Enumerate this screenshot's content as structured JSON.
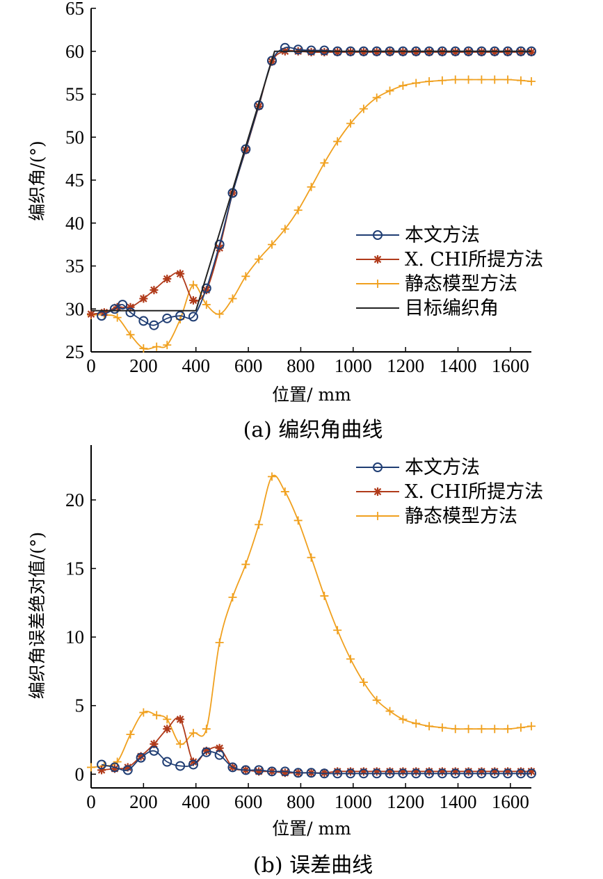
{
  "chart_data": [
    {
      "type": "line",
      "caption": "(a)  编织角曲线",
      "xlabel": "位置/ mm",
      "ylabel": "编织角/(°)",
      "xlim": [
        0,
        1680
      ],
      "ylim": [
        25,
        65
      ],
      "xticks": [
        0,
        200,
        400,
        600,
        800,
        1000,
        1200,
        1400,
        1600
      ],
      "yticks": [
        25,
        30,
        35,
        40,
        45,
        50,
        55,
        60,
        65
      ],
      "legend_position": "center-right",
      "series": [
        {
          "name": "本文方法",
          "color": "#1f3d73",
          "marker": "circle",
          "x": [
            40,
            90,
            120,
            150,
            200,
            240,
            290,
            340,
            390,
            440,
            490,
            540,
            590,
            640,
            690,
            740,
            790,
            840,
            890,
            940,
            990,
            1040,
            1090,
            1140,
            1190,
            1240,
            1290,
            1340,
            1390,
            1440,
            1490,
            1540,
            1590,
            1640,
            1680
          ],
          "y": [
            29.2,
            30,
            30.5,
            29.6,
            28.6,
            28.1,
            28.9,
            29.2,
            29.1,
            32.4,
            37.5,
            43.5,
            48.6,
            53.7,
            58.9,
            60.4,
            60.2,
            60.1,
            60.1,
            60.0,
            60.0,
            60.0,
            60.0,
            60.0,
            60.0,
            60.0,
            60.0,
            60.0,
            60.0,
            60.0,
            60.0,
            60.0,
            60.0,
            60.0,
            60.0
          ]
        },
        {
          "name": "X. CHI所提方法",
          "color": "#b03a1a",
          "marker": "star",
          "x": [
            0,
            50,
            100,
            150,
            200,
            240,
            290,
            340,
            390,
            440,
            490,
            540,
            590,
            640,
            690,
            740,
            790,
            840,
            890,
            940,
            990,
            1040,
            1090,
            1140,
            1190,
            1240,
            1290,
            1340,
            1390,
            1440,
            1490,
            1540,
            1590,
            1640,
            1680
          ],
          "y": [
            29.4,
            29.6,
            30.2,
            30.2,
            31.2,
            32.2,
            33.5,
            34.1,
            31,
            32.2,
            37.1,
            43.5,
            48.5,
            53.6,
            58.8,
            60.0,
            60.0,
            59.9,
            59.9,
            59.9,
            59.9,
            59.9,
            59.9,
            59.9,
            59.9,
            59.9,
            59.9,
            59.9,
            59.9,
            59.9,
            59.9,
            59.9,
            59.9,
            59.9,
            59.9
          ]
        },
        {
          "name": "静态模型方法",
          "color": "#f0a01e",
          "marker": "plus",
          "x": [
            0,
            50,
            100,
            150,
            200,
            250,
            290,
            340,
            390,
            440,
            490,
            540,
            590,
            640,
            690,
            740,
            790,
            840,
            890,
            940,
            990,
            1040,
            1090,
            1140,
            1190,
            1240,
            1290,
            1340,
            1390,
            1440,
            1490,
            1540,
            1590,
            1640,
            1680
          ],
          "y": [
            29.3,
            29.3,
            29.0,
            27.0,
            25.4,
            25.6,
            25.8,
            28.8,
            32.8,
            30.5,
            29.4,
            31.2,
            33.8,
            35.8,
            37.5,
            39.3,
            41.5,
            44.2,
            47.0,
            49.5,
            51.6,
            53.3,
            54.6,
            55.4,
            56.0,
            56.3,
            56.5,
            56.6,
            56.7,
            56.7,
            56.7,
            56.7,
            56.7,
            56.6,
            56.5
          ]
        },
        {
          "name": "目标编织角",
          "color": "#222222",
          "marker": "none",
          "x": [
            0,
            400,
            700,
            1680
          ],
          "y": [
            29.8,
            29.8,
            60,
            60
          ]
        }
      ]
    },
    {
      "type": "line",
      "caption": "(b)  误差曲线",
      "xlabel": "位置/ mm",
      "ylabel": "编织角误差绝对值/(°)",
      "xlim": [
        0,
        1680
      ],
      "ylim": [
        -1,
        24
      ],
      "xticks": [
        0,
        200,
        400,
        600,
        800,
        1000,
        1200,
        1400,
        1600
      ],
      "yticks": [
        0,
        5,
        10,
        15,
        20
      ],
      "legend_position": "top-right",
      "series": [
        {
          "name": "本文方法",
          "color": "#1f3d73",
          "marker": "circle",
          "x": [
            40,
            90,
            140,
            190,
            240,
            290,
            340,
            390,
            440,
            490,
            540,
            590,
            640,
            690,
            740,
            790,
            840,
            890,
            940,
            990,
            1040,
            1090,
            1140,
            1190,
            1240,
            1290,
            1340,
            1390,
            1440,
            1490,
            1540,
            1590,
            1640,
            1680
          ],
          "y": [
            0.7,
            0.5,
            0.3,
            1.2,
            1.7,
            0.9,
            0.6,
            0.7,
            1.6,
            1.4,
            0.5,
            0.3,
            0.3,
            0.2,
            0.2,
            0.1,
            0.1,
            0.05,
            0.05,
            0.05,
            0.05,
            0.05,
            0.05,
            0.05,
            0.05,
            0.05,
            0.05,
            0.05,
            0.05,
            0.05,
            0.05,
            0.05,
            0.05,
            0.05
          ]
        },
        {
          "name": "X. CHI所提方法",
          "color": "#b03a1a",
          "marker": "star",
          "x": [
            40,
            90,
            140,
            190,
            240,
            290,
            340,
            390,
            440,
            490,
            540,
            590,
            640,
            690,
            740,
            790,
            840,
            890,
            940,
            990,
            1040,
            1090,
            1140,
            1190,
            1240,
            1290,
            1340,
            1390,
            1440,
            1490,
            1540,
            1590,
            1640,
            1680
          ],
          "y": [
            0.3,
            0.4,
            0.5,
            1.3,
            2.2,
            3.3,
            4.0,
            0.9,
            1.7,
            1.9,
            0.5,
            0.3,
            0.2,
            0.2,
            0.1,
            0.1,
            0.1,
            0.1,
            0.2,
            0.2,
            0.2,
            0.2,
            0.2,
            0.2,
            0.2,
            0.2,
            0.2,
            0.2,
            0.2,
            0.2,
            0.2,
            0.2,
            0.2,
            0.2
          ]
        },
        {
          "name": "静态模型方法",
          "color": "#f0a01e",
          "marker": "plus",
          "x": [
            0,
            50,
            100,
            150,
            200,
            250,
            290,
            340,
            390,
            440,
            490,
            540,
            590,
            640,
            690,
            740,
            790,
            840,
            890,
            940,
            990,
            1040,
            1090,
            1140,
            1190,
            1240,
            1290,
            1340,
            1390,
            1440,
            1490,
            1540,
            1590,
            1640,
            1680
          ],
          "y": [
            0.5,
            0.6,
            0.9,
            2.9,
            4.5,
            4.3,
            4.0,
            2.2,
            3.0,
            3.3,
            9.6,
            12.9,
            15.3,
            18.2,
            21.7,
            20.6,
            18.5,
            15.8,
            13.0,
            10.5,
            8.4,
            6.7,
            5.4,
            4.6,
            4.0,
            3.7,
            3.5,
            3.4,
            3.3,
            3.3,
            3.3,
            3.3,
            3.3,
            3.4,
            3.5
          ]
        }
      ]
    }
  ]
}
